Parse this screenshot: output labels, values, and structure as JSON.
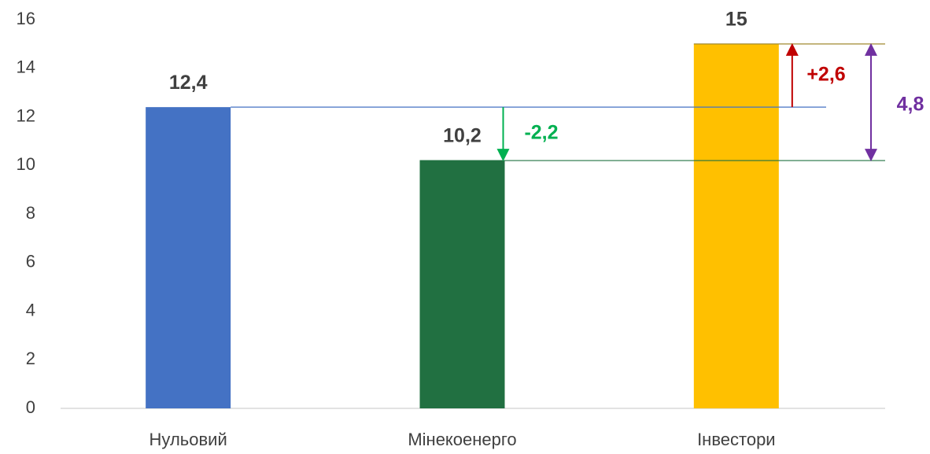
{
  "chart_data": {
    "type": "bar",
    "categories": [
      "Нульовий",
      "Мінекоенерго",
      "Інвестори"
    ],
    "values": [
      12.4,
      10.2,
      15
    ],
    "value_labels": [
      "12,4",
      "10,2",
      "15"
    ],
    "colors": [
      "#4472c4",
      "#217041",
      "#ffc000"
    ],
    "ylim": [
      0,
      16
    ],
    "yticks": [
      0,
      2,
      4,
      6,
      8,
      10,
      12,
      14,
      16
    ],
    "annotations": [
      {
        "text": "-2,2",
        "color": "#00b050"
      },
      {
        "text": "+2,6",
        "color": "#c00000"
      },
      {
        "text": "4,8",
        "color": "#7030a0"
      }
    ]
  }
}
